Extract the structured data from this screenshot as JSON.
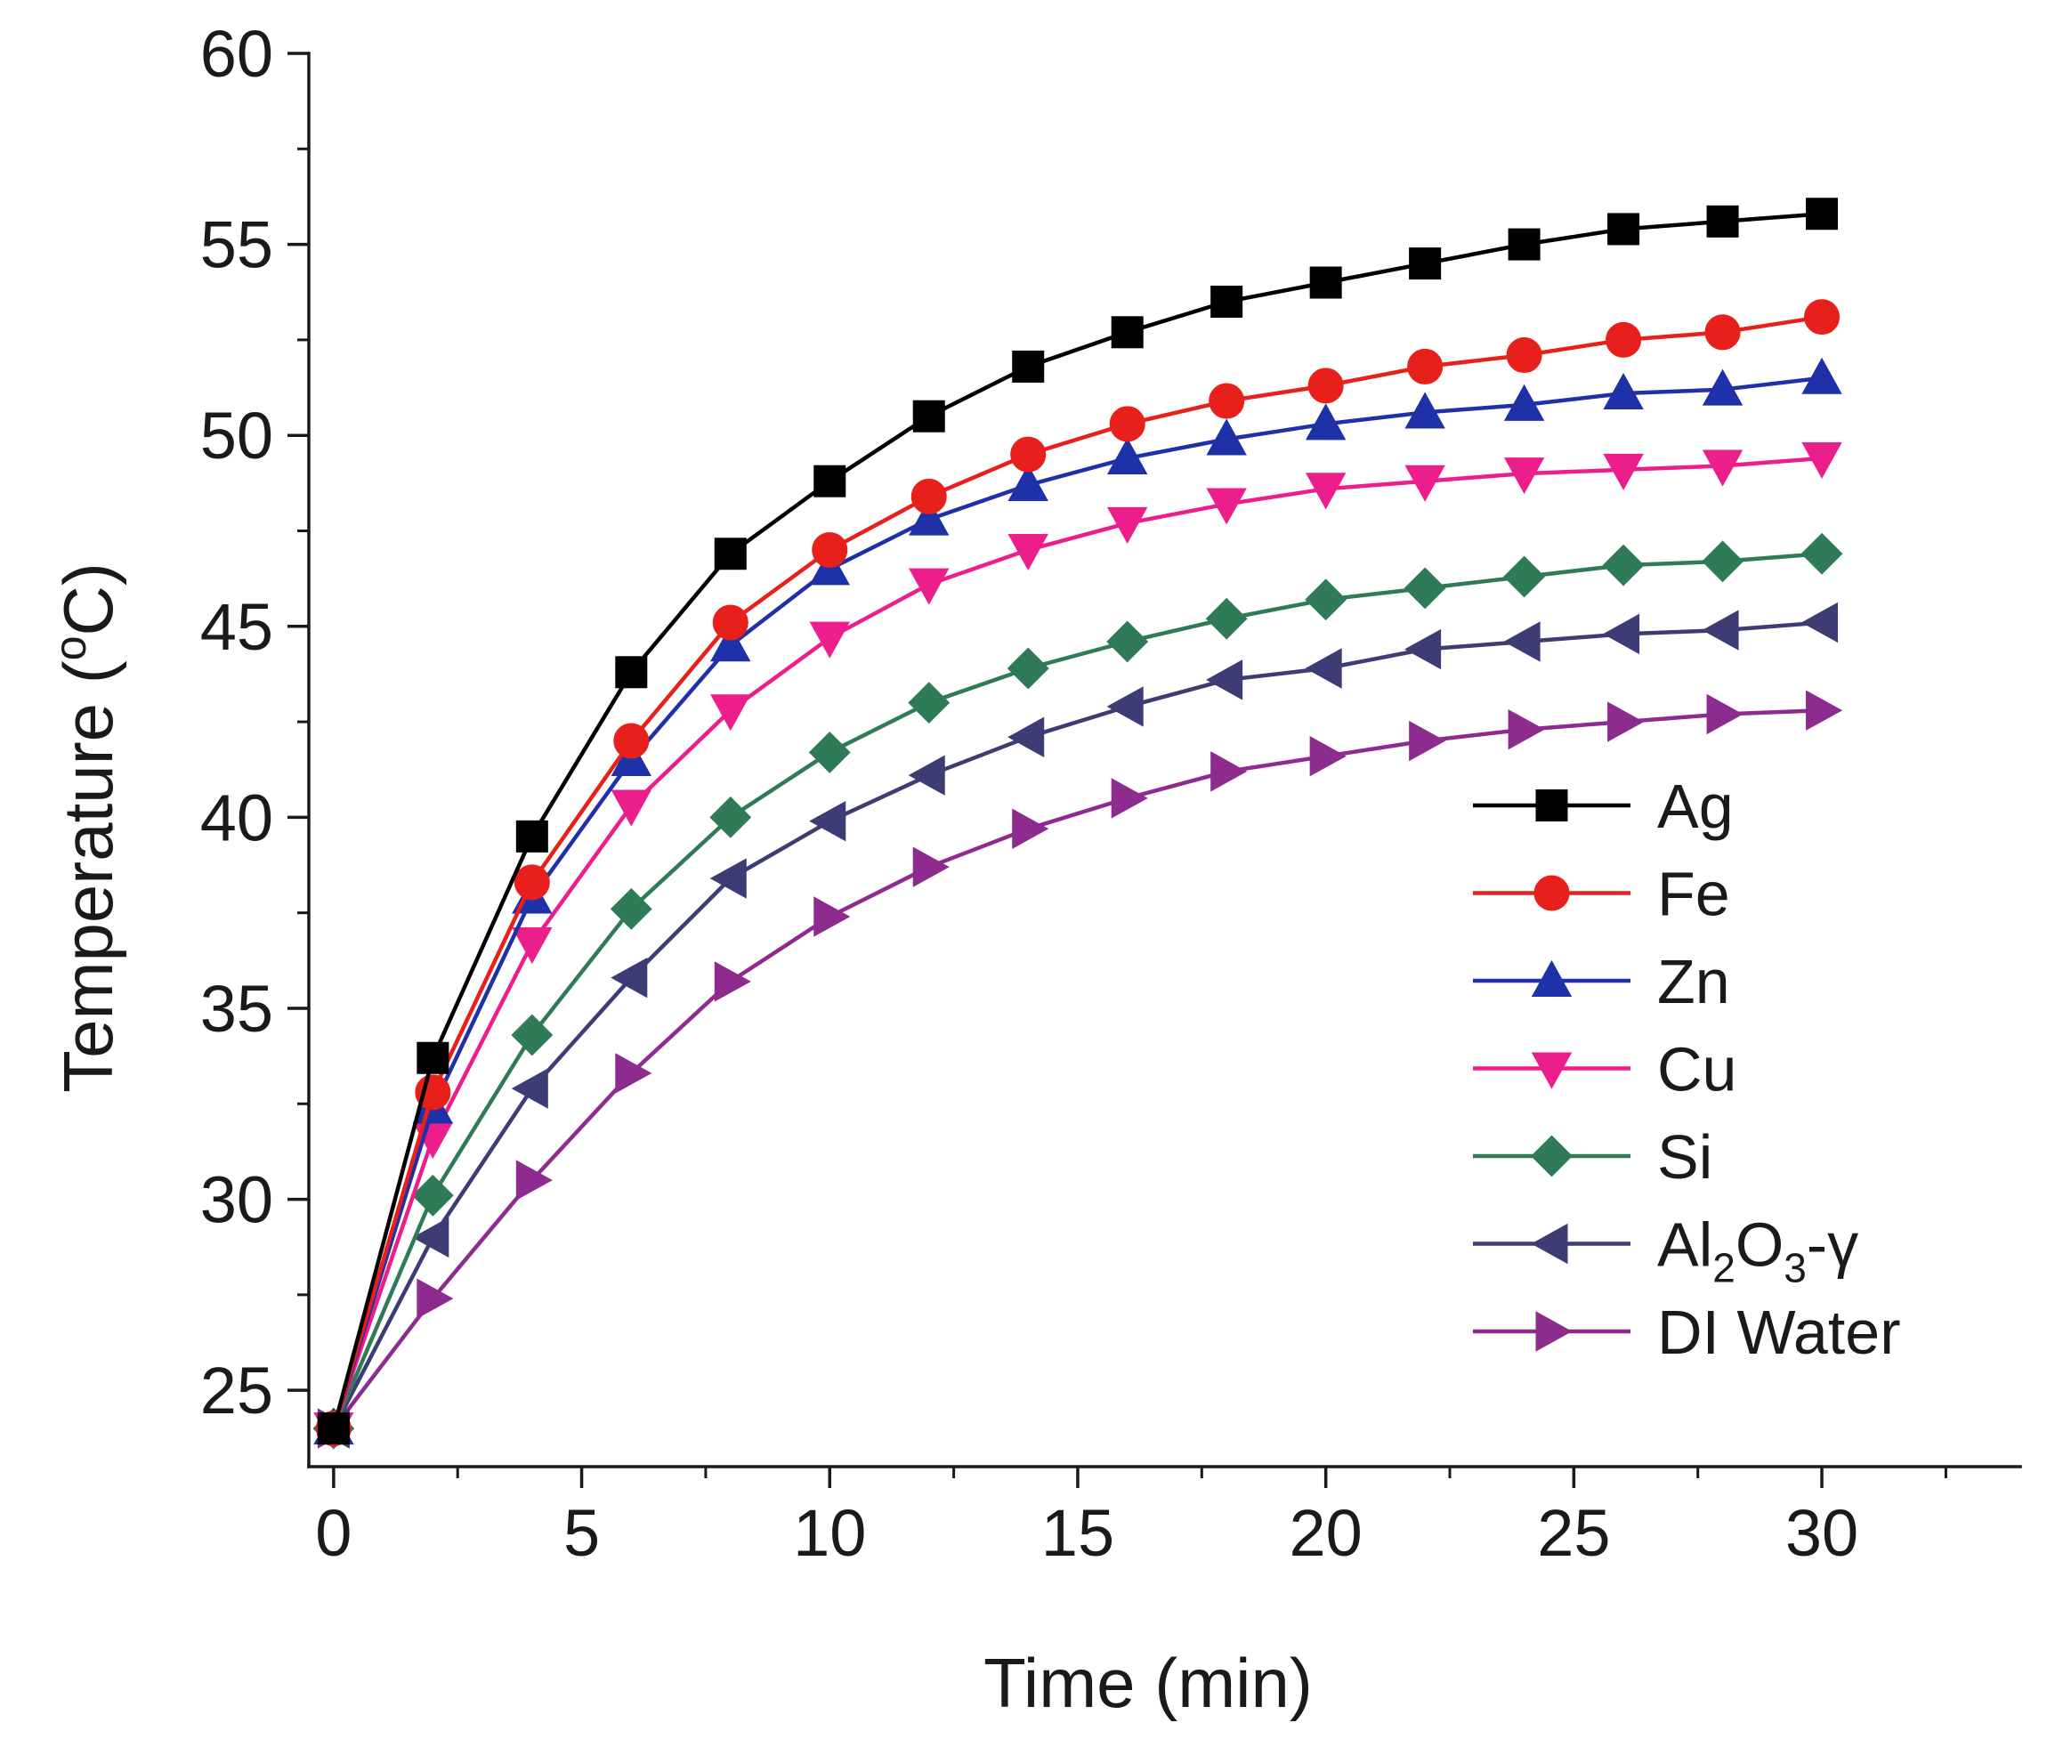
{
  "chart_data": {
    "type": "line",
    "xlabel": "Time (min)",
    "ylabel_prefix": "Temperature (",
    "ylabel_sup": "o",
    "ylabel_suffix": "C)",
    "xlim": [
      -0.5,
      34
    ],
    "ylim": [
      23,
      60
    ],
    "x_ticks": [
      0,
      5,
      10,
      15,
      20,
      25,
      30
    ],
    "y_ticks": [
      25,
      30,
      35,
      40,
      45,
      50,
      55,
      60
    ],
    "x_tick_labels": [
      "0",
      "5",
      "10",
      "15",
      "20",
      "25",
      "30"
    ],
    "y_tick_labels": [
      "25",
      "30",
      "35",
      "40",
      "45",
      "50",
      "55",
      "60"
    ],
    "grid": false,
    "legend_position": "right",
    "x": [
      0,
      2,
      4,
      6,
      8,
      10,
      12,
      14,
      16,
      18,
      20,
      22,
      24,
      26,
      28,
      30
    ],
    "series": [
      {
        "name": "Ag",
        "color": "#000000",
        "marker": "square",
        "values": [
          24.0,
          33.7,
          39.5,
          43.8,
          46.9,
          48.8,
          50.5,
          51.8,
          52.7,
          53.5,
          54.0,
          54.5,
          55.0,
          55.4,
          55.6,
          55.8
        ]
      },
      {
        "name": "Fe",
        "color": "#e8201c",
        "marker": "circle",
        "values": [
          24.0,
          32.8,
          38.3,
          42.0,
          45.1,
          47.0,
          48.4,
          49.5,
          50.3,
          50.9,
          51.3,
          51.8,
          52.1,
          52.5,
          52.7,
          53.1
        ]
      },
      {
        "name": "Zn",
        "color": "#1f31a8",
        "marker": "triangle-up",
        "values": [
          24.0,
          32.4,
          37.9,
          41.5,
          44.5,
          46.5,
          47.8,
          48.7,
          49.4,
          49.9,
          50.3,
          50.6,
          50.8,
          51.1,
          51.2,
          51.5
        ]
      },
      {
        "name": "Cu",
        "color": "#ec1e8c",
        "marker": "triangle-down",
        "values": [
          24.0,
          31.6,
          36.7,
          40.3,
          42.8,
          44.7,
          46.1,
          47.0,
          47.7,
          48.2,
          48.6,
          48.8,
          49.0,
          49.1,
          49.2,
          49.4
        ]
      },
      {
        "name": "Si",
        "color": "#2f7a57",
        "marker": "diamond",
        "values": [
          24.0,
          30.1,
          34.3,
          37.6,
          40.0,
          41.7,
          43.0,
          43.9,
          44.6,
          45.2,
          45.7,
          46.0,
          46.3,
          46.6,
          46.7,
          46.9
        ]
      },
      {
        "name": "Al2O3-γ",
        "name_parts": [
          "Al",
          "2",
          "O",
          "3",
          "-γ"
        ],
        "color": "#3e3c74",
        "marker": "triangle-left",
        "values": [
          24.0,
          29.0,
          32.9,
          35.8,
          38.4,
          39.9,
          41.1,
          42.1,
          42.9,
          43.6,
          43.9,
          44.4,
          44.6,
          44.8,
          44.9,
          45.1
        ]
      },
      {
        "name": "DI Water",
        "color": "#8e2b8e",
        "marker": "triangle-right",
        "values": [
          24.0,
          27.4,
          30.5,
          33.3,
          35.7,
          37.4,
          38.7,
          39.7,
          40.5,
          41.2,
          41.6,
          42.0,
          42.3,
          42.5,
          42.7,
          42.8
        ]
      }
    ]
  }
}
